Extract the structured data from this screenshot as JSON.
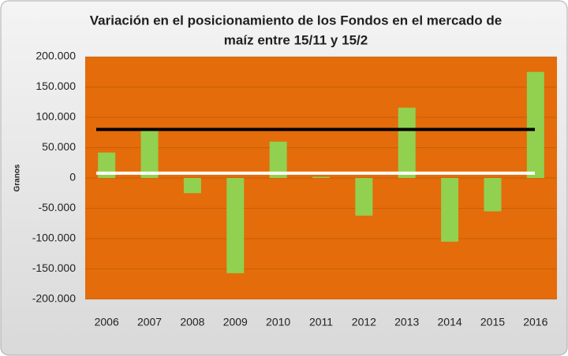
{
  "chart_data": {
    "type": "bar",
    "title": [
      "Variación en el posicionamiento de los Fondos en el mercado de",
      "maíz entre 15/11  y 15/2"
    ],
    "y_label": "Granos",
    "categories": [
      "2006",
      "2007",
      "2008",
      "2009",
      "2010",
      "2011",
      "2012",
      "2013",
      "2014",
      "2015",
      "2016"
    ],
    "values": [
      42000,
      78000,
      -25000,
      -157000,
      60000,
      2000,
      -62000,
      116000,
      -105000,
      -55000,
      175000
    ],
    "color": "#92d050",
    "plot_background": "#e46c0a",
    "ylim": [
      -200000,
      200000
    ],
    "yticks": [
      {
        "value": -200000,
        "label": "-200.000"
      },
      {
        "value": -150000,
        "label": "-150.000"
      },
      {
        "value": -100000,
        "label": "-100.000"
      },
      {
        "value": -50000,
        "label": "-50.000"
      },
      0,
      {
        "value": 50000,
        "label": "50.000"
      },
      {
        "value": 100000,
        "label": "100.000"
      },
      {
        "value": 150000,
        "label": "150.000"
      },
      {
        "value": 200000,
        "label": "200.000"
      }
    ],
    "grid": true,
    "reference_lines": [
      {
        "value": 80000,
        "color": "#000000"
      },
      {
        "value": 8000,
        "color": "#ffffff"
      }
    ]
  }
}
